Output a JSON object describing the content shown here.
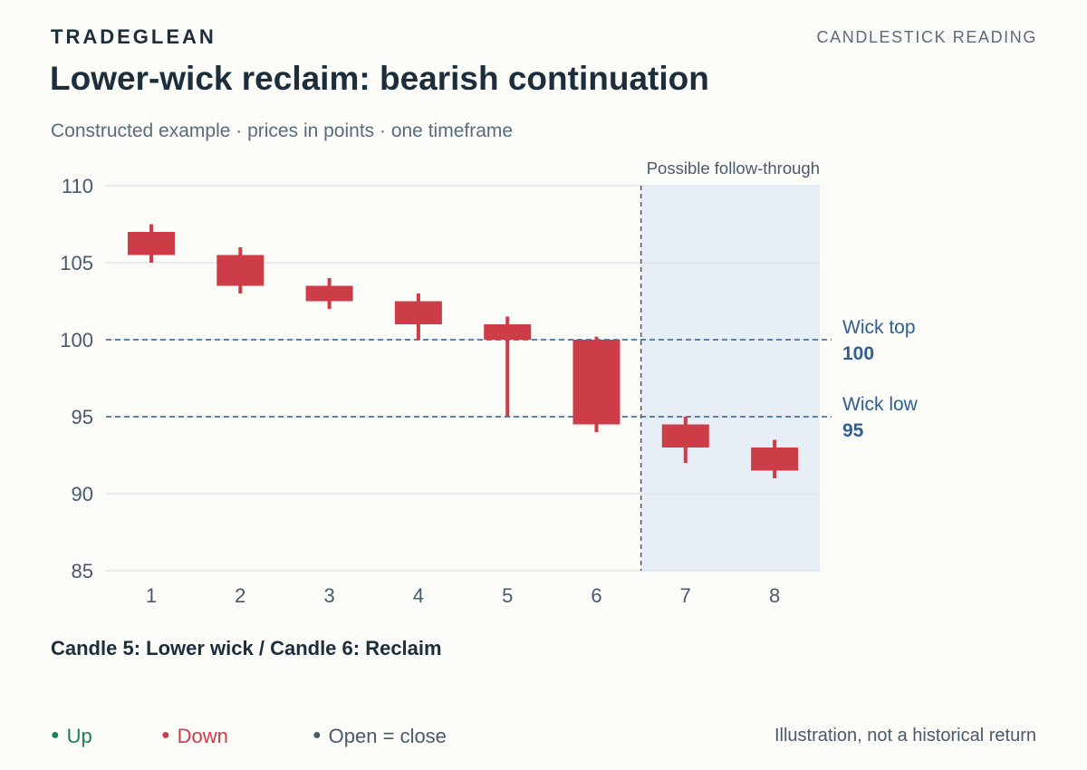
{
  "header": {
    "brand": "TRADEGLEAN",
    "section": "CANDLESTICK READING",
    "title": "Lower-wick reclaim: bearish continuation",
    "subtitle": "Constructed example · prices in points · one timeframe"
  },
  "chart_data": {
    "type": "candlestick",
    "title": "Lower-wick reclaim: bearish continuation",
    "xlabel": "",
    "ylabel": "",
    "ylim": [
      85,
      110
    ],
    "y_ticks": [
      85,
      90,
      95,
      100,
      105,
      110
    ],
    "grid": true,
    "categories": [
      "1",
      "2",
      "3",
      "4",
      "5",
      "6",
      "7",
      "8"
    ],
    "candles": [
      {
        "x": "1",
        "open": 107,
        "high": 107.5,
        "low": 105,
        "close": 105.5,
        "direction": "down"
      },
      {
        "x": "2",
        "open": 105.5,
        "high": 106,
        "low": 103,
        "close": 103.5,
        "direction": "down"
      },
      {
        "x": "3",
        "open": 103.5,
        "high": 104,
        "low": 102,
        "close": 102.5,
        "direction": "down"
      },
      {
        "x": "4",
        "open": 102.5,
        "high": 103,
        "low": 100,
        "close": 101,
        "direction": "down"
      },
      {
        "x": "5",
        "open": 101,
        "high": 101.5,
        "low": 95,
        "close": 100,
        "direction": "down"
      },
      {
        "x": "6",
        "open": 100,
        "high": 100.2,
        "low": 94,
        "close": 94.5,
        "direction": "down"
      },
      {
        "x": "7",
        "open": 94.5,
        "high": 95,
        "low": 92,
        "close": 93,
        "direction": "down"
      },
      {
        "x": "8",
        "open": 93,
        "high": 93.5,
        "low": 91,
        "close": 91.5,
        "direction": "down"
      }
    ],
    "reference_lines": [
      {
        "label": "Wick top",
        "value": 100,
        "value_label": "100"
      },
      {
        "label": "Wick low",
        "value": 95,
        "value_label": "95"
      }
    ],
    "shaded_region": {
      "label": "Possible follow-through",
      "from_category": "7",
      "to_category": "8"
    },
    "colors": {
      "up": "#1a7f5a",
      "down": "#cc3d47",
      "flat": "#4a5a6a",
      "reference": "#2f5f8f",
      "shade": "#e8eef6",
      "grid": "#dde3ea",
      "axis_text": "#4a5a6a"
    }
  },
  "annotation": {
    "note": "Candle 5: Lower wick / Candle 6: Reclaim"
  },
  "legend": {
    "up": "Up",
    "down": "Down",
    "flat": "Open = close"
  },
  "footer": {
    "disclaimer": "Illustration, not a historical return"
  }
}
